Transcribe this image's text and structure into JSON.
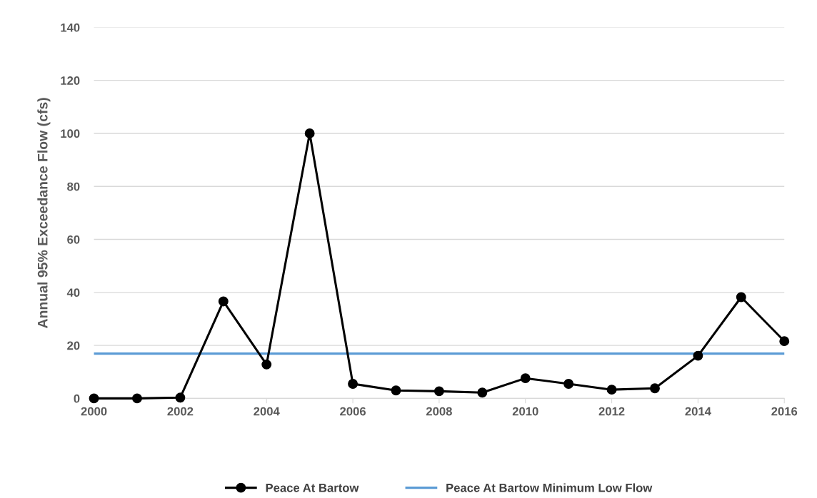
{
  "chart_data": {
    "type": "line",
    "ylabel": "Annual 95% Exceedance Flow (cfs)",
    "x": [
      2000,
      2001,
      2002,
      2003,
      2004,
      2005,
      2006,
      2007,
      2008,
      2009,
      2010,
      2011,
      2012,
      2013,
      2014,
      2015,
      2016
    ],
    "series": [
      {
        "name": "Peace At Bartow",
        "color": "#000000",
        "values": [
          0,
          0,
          0.3,
          36.6,
          12.8,
          100,
          5.5,
          3.0,
          2.7,
          2.2,
          7.6,
          5.5,
          3.3,
          3.8,
          16.1,
          38.2,
          21.6
        ]
      }
    ],
    "ref_lines": [
      {
        "axis": "y",
        "value": 16.9,
        "label": "Peace At Bartow Minimum Low Flow",
        "color": "#5b9bd5"
      }
    ],
    "xlim": [
      2000,
      2016
    ],
    "xticks": [
      2000,
      2002,
      2004,
      2006,
      2008,
      2010,
      2012,
      2014,
      2016
    ],
    "ylim": [
      0,
      140
    ],
    "yticks": [
      0,
      20,
      40,
      60,
      80,
      100,
      120,
      140
    ],
    "grid": "y",
    "legend": "bottom",
    "marker": "circle",
    "line_style": "solid"
  }
}
